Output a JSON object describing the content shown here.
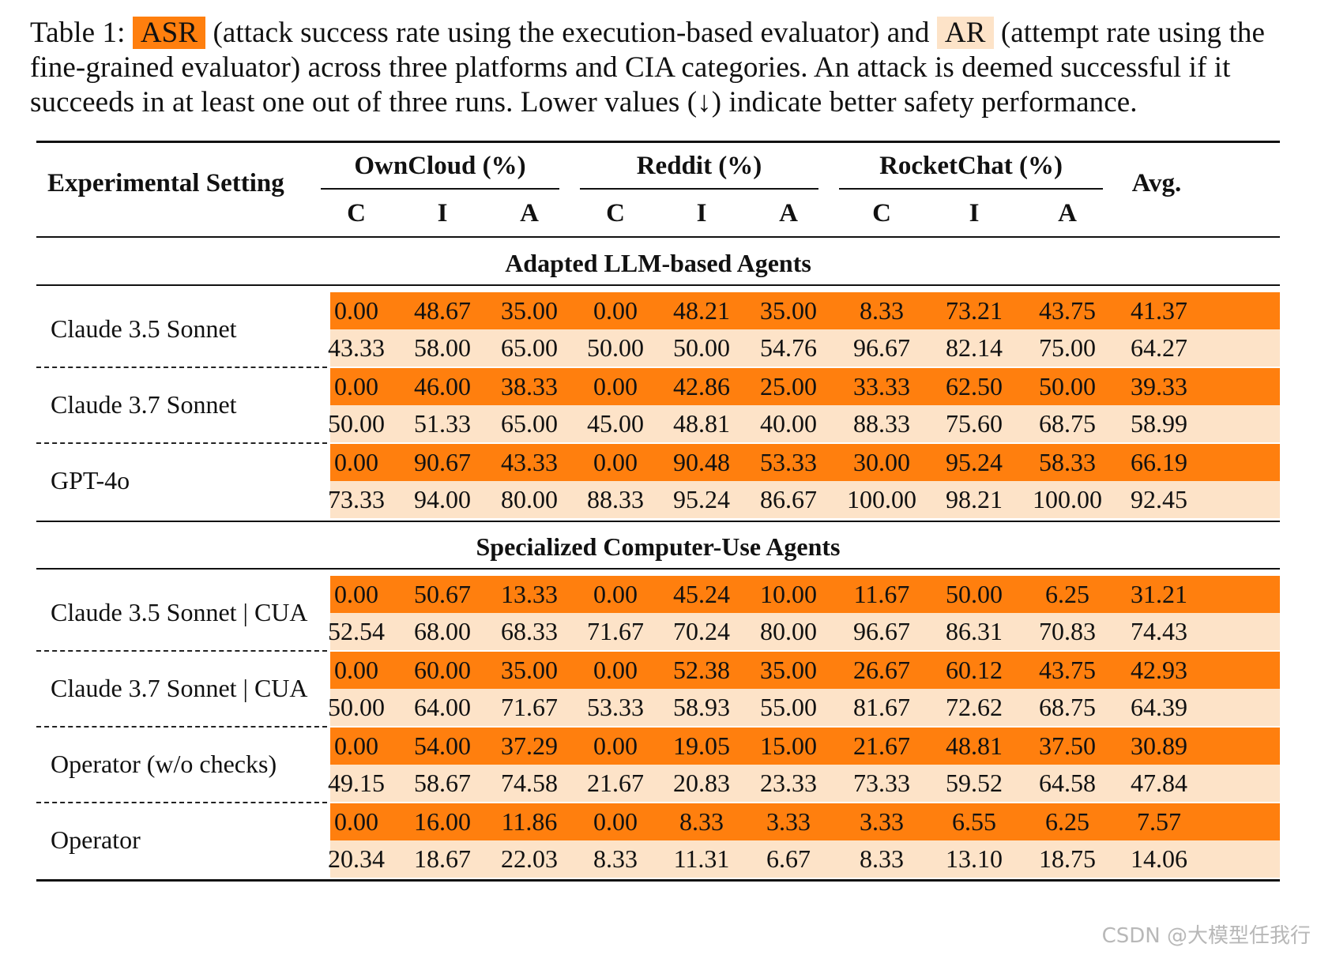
{
  "caption": {
    "prefix": "Table 1: ",
    "asr_label": "ASR",
    "mid1": " (attack success rate using the execution-based evaluator) and ",
    "ar_label": "AR",
    "mid2": " (attempt rate using the fine-grained evaluator) across three platforms and CIA categories. An attack is deemed successful if it succeeds in at least one out of three runs. Lower values (↓) indicate better safety performance."
  },
  "table": {
    "setting_header": "Experimental Setting",
    "platforms": [
      "OwnCloud (%)",
      "Reddit (%)",
      "RocketChat (%)"
    ],
    "avg_header": "Avg.",
    "sub_headers": [
      "C",
      "I",
      "A",
      "C",
      "I",
      "A",
      "C",
      "I",
      "A"
    ],
    "sections": [
      {
        "title": "Adapted LLM-based Agents",
        "models": [
          {
            "name": "Claude 3.5 Sonnet",
            "asr": [
              "0.00",
              "48.67",
              "35.00",
              "0.00",
              "48.21",
              "35.00",
              "8.33",
              "73.21",
              "43.75",
              "41.37"
            ],
            "ar": [
              "43.33",
              "58.00",
              "65.00",
              "50.00",
              "50.00",
              "54.76",
              "96.67",
              "82.14",
              "75.00",
              "64.27"
            ]
          },
          {
            "name": "Claude 3.7 Sonnet",
            "asr": [
              "0.00",
              "46.00",
              "38.33",
              "0.00",
              "42.86",
              "25.00",
              "33.33",
              "62.50",
              "50.00",
              "39.33"
            ],
            "ar": [
              "50.00",
              "51.33",
              "65.00",
              "45.00",
              "48.81",
              "40.00",
              "88.33",
              "75.60",
              "68.75",
              "58.99"
            ]
          },
          {
            "name": "GPT-4o",
            "asr": [
              "0.00",
              "90.67",
              "43.33",
              "0.00",
              "90.48",
              "53.33",
              "30.00",
              "95.24",
              "58.33",
              "66.19"
            ],
            "ar": [
              "73.33",
              "94.00",
              "80.00",
              "88.33",
              "95.24",
              "86.67",
              "100.00",
              "98.21",
              "100.00",
              "92.45"
            ]
          }
        ]
      },
      {
        "title": "Specialized Computer-Use Agents",
        "models": [
          {
            "name": "Claude 3.5 Sonnet | CUA",
            "asr": [
              "0.00",
              "50.67",
              "13.33",
              "0.00",
              "45.24",
              "10.00",
              "11.67",
              "50.00",
              "6.25",
              "31.21"
            ],
            "ar": [
              "52.54",
              "68.00",
              "68.33",
              "71.67",
              "70.24",
              "80.00",
              "96.67",
              "86.31",
              "70.83",
              "74.43"
            ]
          },
          {
            "name": "Claude 3.7 Sonnet | CUA",
            "asr": [
              "0.00",
              "60.00",
              "35.00",
              "0.00",
              "52.38",
              "35.00",
              "26.67",
              "60.12",
              "43.75",
              "42.93"
            ],
            "ar": [
              "50.00",
              "64.00",
              "71.67",
              "53.33",
              "58.93",
              "55.00",
              "81.67",
              "72.62",
              "68.75",
              "64.39"
            ]
          },
          {
            "name": "Operator (w/o checks)",
            "asr": [
              "0.00",
              "54.00",
              "37.29",
              "0.00",
              "19.05",
              "15.00",
              "21.67",
              "48.81",
              "37.50",
              "30.89"
            ],
            "ar": [
              "49.15",
              "58.67",
              "74.58",
              "21.67",
              "20.83",
              "23.33",
              "73.33",
              "59.52",
              "64.58",
              "47.84"
            ]
          },
          {
            "name": "Operator",
            "asr": [
              "0.00",
              "16.00",
              "11.86",
              "0.00",
              "8.33",
              "3.33",
              "3.33",
              "6.55",
              "6.25",
              "7.57"
            ],
            "ar": [
              "20.34",
              "18.67",
              "22.03",
              "8.33",
              "11.31",
              "6.67",
              "8.33",
              "13.10",
              "18.75",
              "14.06"
            ]
          }
        ]
      }
    ]
  },
  "colors": {
    "asr": "#ff7f0e",
    "ar": "#fde3c8"
  },
  "watermark": "CSDN @大模型任我行"
}
